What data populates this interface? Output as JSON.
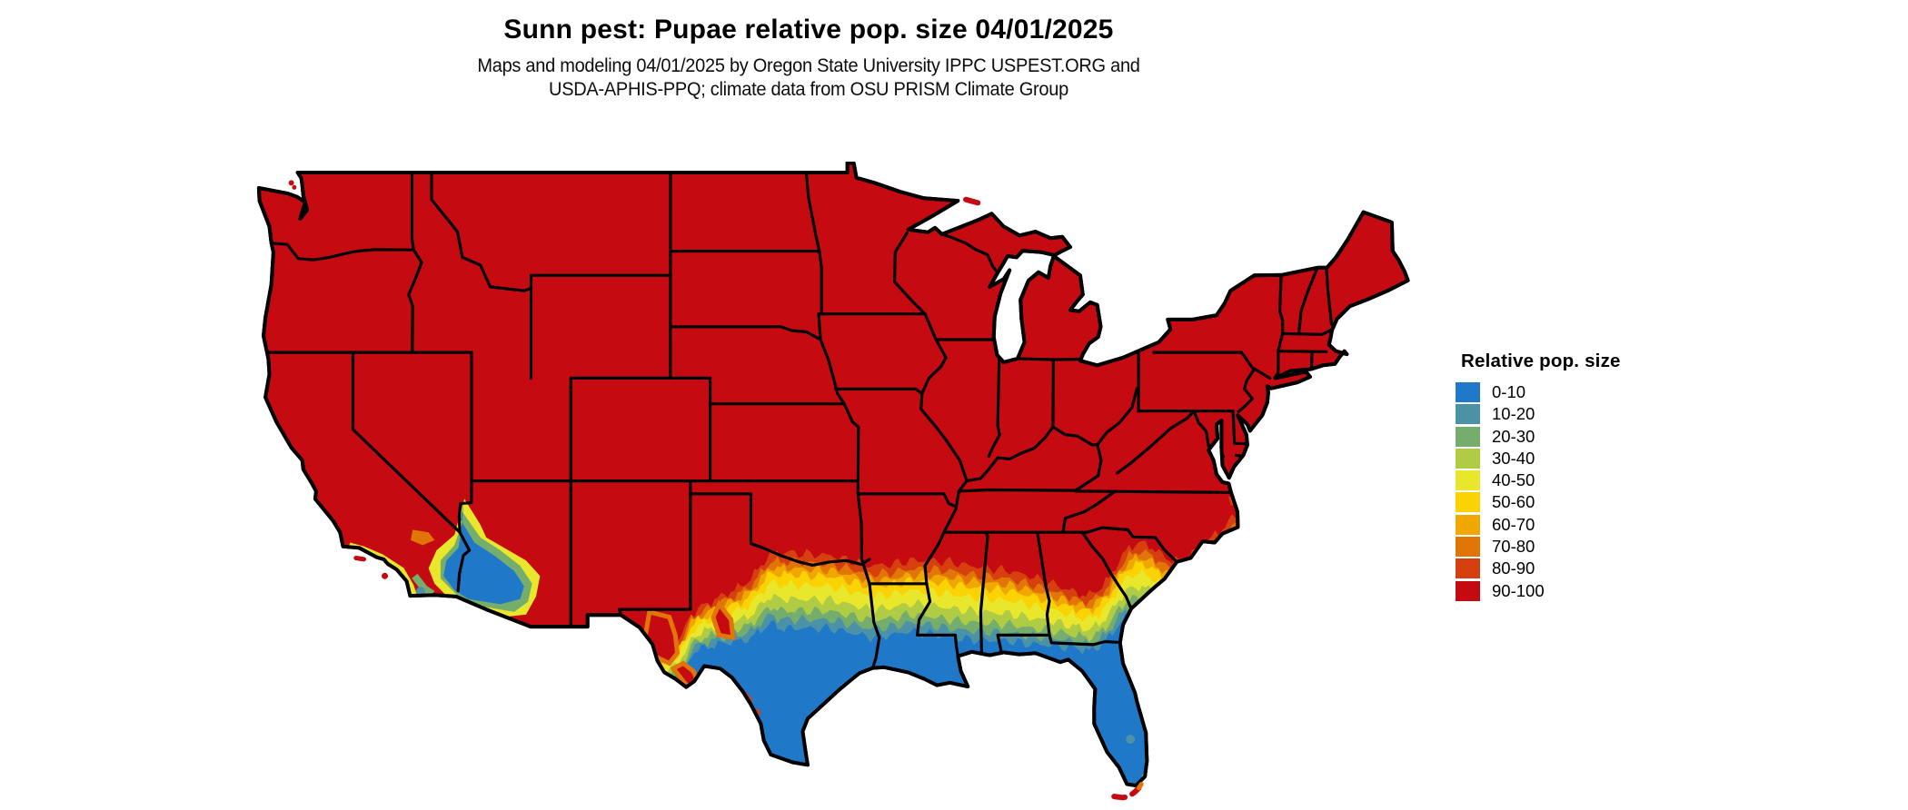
{
  "header": {
    "title": "Sunn pest: Pupae relative pop. size 04/01/2025",
    "subtitle_line1": "Maps and modeling 04/01/2025 by Oregon State University IPPC USPEST.ORG and",
    "subtitle_line2": "USDA-APHIS-PPQ; climate data from OSU PRISM Climate Group"
  },
  "legend": {
    "title": "Relative pop. size",
    "entries": [
      {
        "label": "0-10",
        "color": "#1F78C8"
      },
      {
        "label": "10-20",
        "color": "#4C92A6"
      },
      {
        "label": "20-30",
        "color": "#75AE6C"
      },
      {
        "label": "30-40",
        "color": "#B0CC44"
      },
      {
        "label": "40-50",
        "color": "#E8E72C"
      },
      {
        "label": "50-60",
        "color": "#FBD305"
      },
      {
        "label": "60-70",
        "color": "#F0A801"
      },
      {
        "label": "70-80",
        "color": "#E27507"
      },
      {
        "label": "80-90",
        "color": "#D6400E"
      },
      {
        "label": "90-100",
        "color": "#C50B11"
      }
    ]
  },
  "map": {
    "name": "Contiguous United States",
    "outline_color": "#000000",
    "background_color": "#FFFFFF",
    "dominant_class": "90-100"
  }
}
